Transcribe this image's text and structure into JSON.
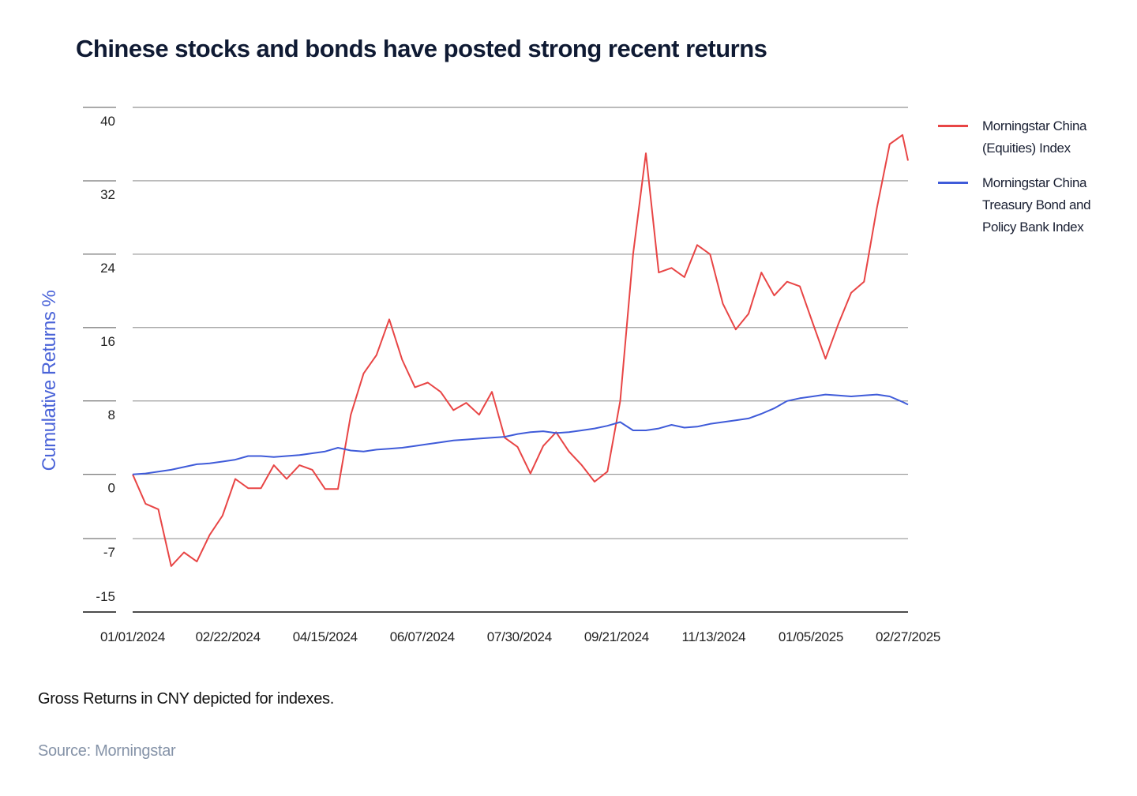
{
  "chart_data": {
    "type": "line",
    "title": "Chinese stocks and bonds have posted strong recent returns",
    "y_label": "Cumulative Returns %",
    "note": "Gross Returns in CNY depicted for indexes.",
    "source": "Source: Morningstar",
    "x": [
      "01/01/2024",
      "01/08/2024",
      "01/15/2024",
      "01/22/2024",
      "01/29/2024",
      "02/05/2024",
      "02/12/2024",
      "02/19/2024",
      "02/26/2024",
      "03/04/2024",
      "03/11/2024",
      "03/18/2024",
      "03/25/2024",
      "04/01/2024",
      "04/08/2024",
      "04/15/2024",
      "04/22/2024",
      "04/29/2024",
      "05/06/2024",
      "05/13/2024",
      "05/20/2024",
      "05/27/2024",
      "06/03/2024",
      "06/10/2024",
      "06/17/2024",
      "06/24/2024",
      "07/01/2024",
      "07/08/2024",
      "07/15/2024",
      "07/22/2024",
      "07/29/2024",
      "08/05/2024",
      "08/12/2024",
      "08/19/2024",
      "08/26/2024",
      "09/02/2024",
      "09/09/2024",
      "09/16/2024",
      "09/23/2024",
      "09/30/2024",
      "10/07/2024",
      "10/14/2024",
      "10/21/2024",
      "10/28/2024",
      "11/04/2024",
      "11/11/2024",
      "11/18/2024",
      "11/25/2024",
      "12/02/2024",
      "12/09/2024",
      "12/16/2024",
      "12/23/2024",
      "12/30/2024",
      "01/06/2025",
      "01/13/2025",
      "01/20/2025",
      "01/27/2025",
      "02/03/2025",
      "02/10/2025",
      "02/17/2025",
      "02/24/2025",
      "02/27/2025"
    ],
    "series": [
      {
        "name": "Morningstar China (Equities) Index",
        "color": "#e84545",
        "values": [
          0,
          -3.2,
          -3.8,
          -10,
          -8.5,
          -9.5,
          -6.6,
          -4.5,
          -0.5,
          -1.5,
          -1.5,
          1.0,
          -0.5,
          1.0,
          0.5,
          -1.6,
          -1.6,
          6.5,
          11,
          13,
          16.9,
          12.5,
          9.5,
          10,
          9,
          7,
          7.8,
          6.5,
          9,
          4,
          3,
          0.1,
          3.1,
          4.6,
          2.5,
          1,
          -0.8,
          0.3,
          8,
          24,
          35,
          22,
          22.5,
          21.5,
          25,
          24,
          18.6,
          15.8,
          17.5,
          22,
          19.5,
          21,
          20.5,
          16.5,
          12.6,
          16.4,
          19.8,
          21,
          29,
          36,
          37,
          34.2
        ]
      },
      {
        "name": "Morningstar China Treasury Bond and Policy Bank Index",
        "color": "#3f5bd9",
        "values": [
          0,
          0.1,
          0.3,
          0.5,
          0.8,
          1.1,
          1.2,
          1.4,
          1.6,
          2.0,
          2.0,
          1.9,
          2.0,
          2.1,
          2.3,
          2.5,
          2.9,
          2.6,
          2.5,
          2.7,
          2.8,
          2.9,
          3.1,
          3.3,
          3.5,
          3.7,
          3.8,
          3.9,
          4.0,
          4.1,
          4.4,
          4.6,
          4.7,
          4.5,
          4.6,
          4.8,
          5.0,
          5.3,
          5.7,
          4.8,
          4.8,
          5.0,
          5.4,
          5.1,
          5.2,
          5.5,
          5.7,
          5.9,
          6.1,
          6.6,
          7.2,
          8.0,
          8.3,
          8.5,
          8.7,
          8.6,
          8.5,
          8.6,
          8.7,
          8.5,
          7.9,
          7.6
        ]
      }
    ],
    "xlim": [
      "01/01/2024",
      "02/27/2025"
    ],
    "xticks": [
      "01/01/2024",
      "02/22/2024",
      "04/15/2024",
      "06/07/2024",
      "07/30/2024",
      "09/21/2024",
      "11/13/2024",
      "01/05/2025",
      "02/27/2025"
    ],
    "ylim": [
      -15,
      40
    ],
    "yticks": [
      40,
      32,
      24,
      16,
      8,
      0,
      -7,
      -15
    ],
    "grid": true,
    "legend": "right"
  }
}
